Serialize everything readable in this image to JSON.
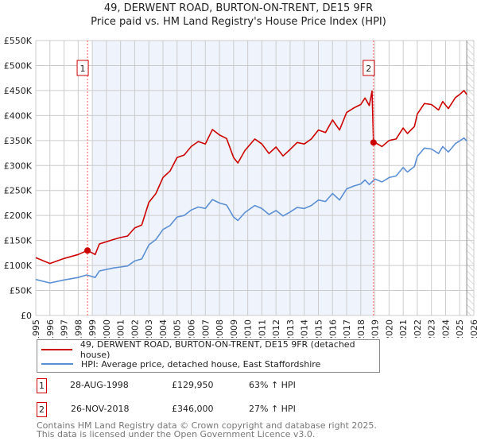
{
  "header": {
    "title": "49, DERWENT ROAD, BURTON-ON-TRENT, DE15 9FR",
    "subtitle": "Price paid vs. HM Land Registry's House Price Index (HPI)"
  },
  "colors": {
    "property": "#cc0000",
    "hpi": "#5b8fd4",
    "shade": "#eef3fc",
    "marker_line": "#ff5555"
  },
  "chart_data": {
    "type": "line",
    "title": "49, DERWENT ROAD, BURTON-ON-TRENT, DE15 9FR - Price paid vs. HM Land Registry's House Price Index (HPI)",
    "xlabel": "",
    "ylabel": "",
    "xlim": [
      1995,
      2026
    ],
    "ylim": [
      0,
      550000
    ],
    "x_ticks": [
      "1995",
      "1996",
      "1997",
      "1998",
      "1999",
      "2000",
      "2001",
      "2002",
      "2003",
      "2004",
      "2005",
      "2006",
      "2007",
      "2008",
      "2009",
      "2010",
      "2011",
      "2012",
      "2013",
      "2014",
      "2015",
      "2016",
      "2017",
      "2018",
      "2019",
      "2020",
      "2021",
      "2022",
      "2023",
      "2024",
      "2025",
      "2026"
    ],
    "y_ticks": [
      {
        "v": 0,
        "label": "£0"
      },
      {
        "v": 50000,
        "label": "£50K"
      },
      {
        "v": 100000,
        "label": "£100K"
      },
      {
        "v": 150000,
        "label": "£150K"
      },
      {
        "v": 200000,
        "label": "£200K"
      },
      {
        "v": 250000,
        "label": "£250K"
      },
      {
        "v": 300000,
        "label": "£300K"
      },
      {
        "v": 350000,
        "label": "£350K"
      },
      {
        "v": 400000,
        "label": "£400K"
      },
      {
        "v": 450000,
        "label": "£450K"
      },
      {
        "v": 500000,
        "label": "£500K"
      },
      {
        "v": 550000,
        "label": "£550K"
      }
    ],
    "grid": true,
    "shaded_range": [
      1999.0,
      2018.9
    ],
    "forecast_hatch_from": 2025.5,
    "series": [
      {
        "name": "49, DERWENT ROAD, BURTON-ON-TRENT, DE15 9FR (detached house)",
        "color": "#cc0000",
        "x": [
          1995.0,
          1996.0,
          1997.0,
          1998.0,
          1998.66,
          1999.2,
          1999.5,
          2000.5,
          2001.0,
          2001.5,
          2002.0,
          2002.5,
          2003.0,
          2003.5,
          2004.0,
          2004.5,
          2005.0,
          2005.5,
          2006.0,
          2006.5,
          2007.0,
          2007.5,
          2008.0,
          2008.5,
          2009.0,
          2009.3,
          2009.8,
          2010.5,
          2011.0,
          2011.5,
          2012.0,
          2012.5,
          2013.0,
          2013.5,
          2014.0,
          2014.5,
          2015.0,
          2015.5,
          2016.0,
          2016.5,
          2017.0,
          2017.5,
          2018.0,
          2018.3,
          2018.6,
          2018.8,
          2018.9,
          2019.0,
          2019.5,
          2020.0,
          2020.5,
          2021.0,
          2021.3,
          2021.8,
          2022.0,
          2022.5,
          2023.0,
          2023.5,
          2023.8,
          2024.2,
          2024.7,
          2025.0,
          2025.3,
          2025.5
        ],
        "y": [
          115500,
          104000,
          114000,
          122000,
          129950,
          122000,
          143000,
          152000,
          156000,
          159000,
          175000,
          181000,
          226000,
          244000,
          276000,
          289000,
          316000,
          321000,
          338000,
          348000,
          343000,
          372000,
          361000,
          354000,
          316000,
          305000,
          330000,
          353000,
          343000,
          324000,
          337000,
          319000,
          332000,
          346000,
          343000,
          353000,
          371000,
          366000,
          391000,
          371000,
          406000,
          415000,
          422000,
          435000,
          420000,
          449000,
          346000,
          346000,
          338000,
          350000,
          353000,
          375000,
          364000,
          378000,
          403000,
          424000,
          422000,
          411000,
          428000,
          414000,
          436000,
          442000,
          450000,
          442000
        ]
      },
      {
        "name": "HPI: Average price, detached house, East Staffordshire",
        "color": "#5b8fd4",
        "x": [
          1995.0,
          1996.0,
          1997.0,
          1998.0,
          1998.6,
          1999.2,
          1999.5,
          2000.5,
          2001.0,
          2001.5,
          2002.0,
          2002.5,
          2003.0,
          2003.5,
          2004.0,
          2004.5,
          2005.0,
          2005.5,
          2006.0,
          2006.5,
          2007.0,
          2007.5,
          2008.0,
          2008.5,
          2009.0,
          2009.3,
          2009.8,
          2010.5,
          2011.0,
          2011.5,
          2012.0,
          2012.5,
          2013.0,
          2013.5,
          2014.0,
          2014.5,
          2015.0,
          2015.5,
          2016.0,
          2016.5,
          2017.0,
          2017.5,
          2018.0,
          2018.3,
          2018.6,
          2019.0,
          2019.5,
          2020.0,
          2020.5,
          2021.0,
          2021.3,
          2021.8,
          2022.0,
          2022.5,
          2023.0,
          2023.5,
          2023.8,
          2024.2,
          2024.7,
          2025.0,
          2025.3,
          2025.5
        ],
        "y": [
          72000,
          65000,
          71000,
          76000,
          81000,
          76000,
          89000,
          95000,
          97000,
          99000,
          109000,
          113000,
          141000,
          152000,
          172000,
          180000,
          197000,
          200000,
          211000,
          217000,
          214000,
          232000,
          225000,
          221000,
          197000,
          190000,
          206000,
          220000,
          214000,
          202000,
          210000,
          199000,
          207000,
          216000,
          214000,
          220000,
          231000,
          228000,
          244000,
          231000,
          253000,
          259000,
          263000,
          271000,
          262000,
          273000,
          267000,
          276000,
          279000,
          296000,
          287000,
          298000,
          318000,
          335000,
          333000,
          324000,
          338000,
          327000,
          344000,
          349000,
          355000,
          349000
        ]
      }
    ],
    "sales": [
      {
        "id": "1",
        "x": 1998.66,
        "y": 129950
      },
      {
        "id": "2",
        "x": 2018.9,
        "y": 346000
      }
    ],
    "legend_position": "bottom"
  },
  "legend": {
    "property_label": "49, DERWENT ROAD, BURTON-ON-TRENT, DE15 9FR (detached house)",
    "hpi_label": "HPI: Average price, detached house, East Staffordshire"
  },
  "transactions": [
    {
      "id": "1",
      "date": "28-AUG-1998",
      "price": "£129,950",
      "hpi": "63% ↑ HPI"
    },
    {
      "id": "2",
      "date": "26-NOV-2018",
      "price": "£346,000",
      "hpi": "27% ↑ HPI"
    }
  ],
  "footer": {
    "line1": "Contains HM Land Registry data © Crown copyright and database right 2025.",
    "line2": "This data is licensed under the Open Government Licence v3.0."
  }
}
